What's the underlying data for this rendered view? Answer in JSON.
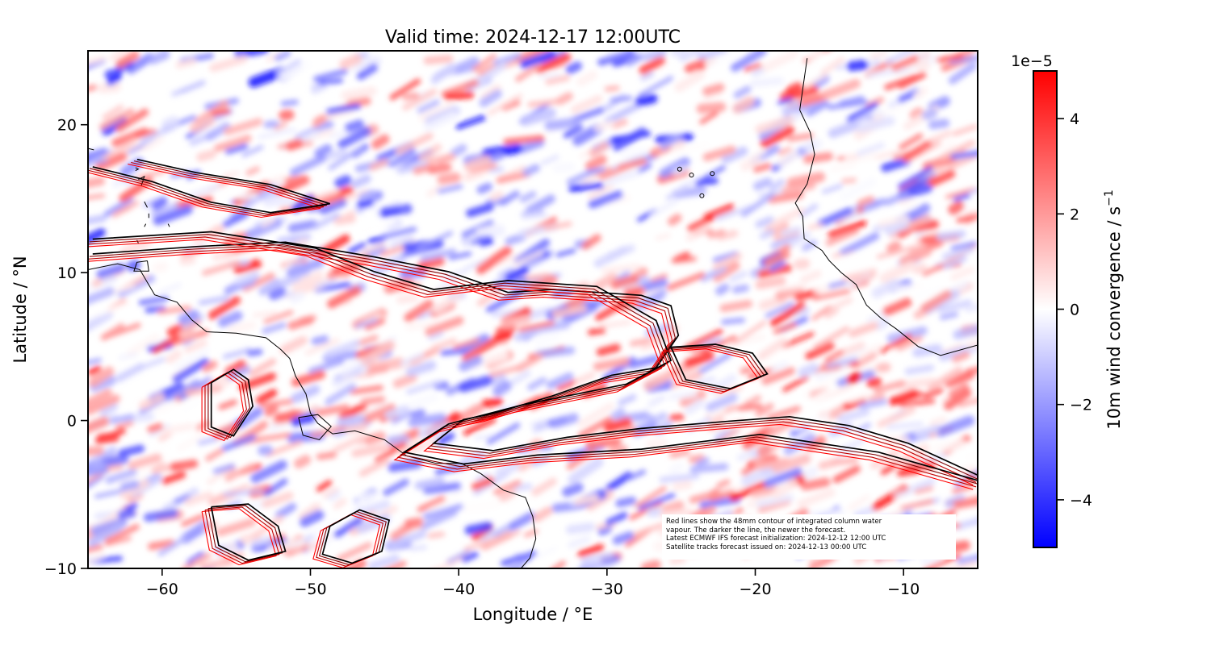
{
  "chart_data": {
    "type": "heatmap",
    "title": "Valid time: 2024-12-17 12:00UTC",
    "xlabel": "Longitude / °E",
    "ylabel": "Latitude / °N",
    "xlim": [
      -65,
      -5
    ],
    "ylim": [
      -10,
      25
    ],
    "x_ticks": [
      -60,
      -50,
      -40,
      -30,
      -20,
      -10
    ],
    "x_tick_labels": [
      "−60",
      "−50",
      "−40",
      "−30",
      "−20",
      "−10"
    ],
    "y_ticks": [
      -10,
      0,
      10,
      20
    ],
    "y_tick_labels": [
      "−10",
      "0",
      "10",
      "20"
    ],
    "colorbar": {
      "label": "10m wind convergence / s",
      "label_exponent": "−1",
      "offset_text": "1e−5",
      "range": [
        -5,
        5
      ],
      "ticks": [
        -4,
        -2,
        0,
        2,
        4
      ],
      "tick_labels": [
        "−4",
        "−2",
        "0",
        "2",
        "4"
      ],
      "colormap": "bwr",
      "colors": [
        "#0000ff",
        "#ffffff",
        "#ff0000"
      ]
    },
    "contour": {
      "quantity": "48mm integrated column water vapour",
      "colors": [
        "#ff0000",
        "#c00000",
        "#800000",
        "#000000"
      ]
    },
    "annotation": [
      "Red lines show the 48mm contour of integrated column water",
      "vapour. The darker the line, the newer the forecast.",
      "Latest ECMWF IFS forecast initialization: 2024-12-12 12:00 UTC",
      "Satellite tracks forecast issued on: 2024-12-13 00:00 UTC"
    ]
  }
}
